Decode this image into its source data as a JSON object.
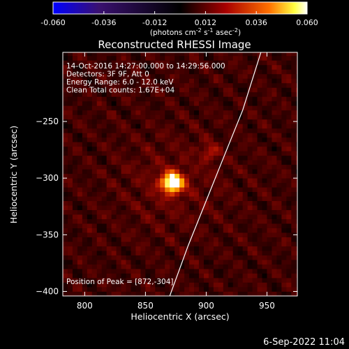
{
  "chart_data": {
    "type": "heatmap",
    "title": "Reconstructed RHESSI Image",
    "xlabel": "Heliocentric X (arcsec)",
    "ylabel": "Heliocentric Y (arcsec)",
    "xlim": [
      782,
      975
    ],
    "ylim": [
      -404,
      -189
    ],
    "xticks": [
      800,
      850,
      900,
      950
    ],
    "yticks": [
      -250,
      -300,
      -350,
      -400
    ],
    "colorbar": {
      "min": -0.06,
      "max": 0.06,
      "ticks": [
        "-0.060",
        "-0.036",
        "-0.012",
        "0.012",
        "0.036",
        "0.060"
      ],
      "unit_prefix": "(photons cm",
      "unit_exp1": "-2",
      "unit_mid": " s",
      "unit_exp2": "-1",
      "unit_mid2": " asec",
      "unit_exp3": "-2",
      "unit_suffix": ")"
    },
    "annotations": [
      "14-Oct-2016 14:27:00.000 to 14:29:56.000",
      "Detectors: 3F 9F, Att 0",
      "Energy Range: 6.0 - 12.0 keV",
      "Clean    Total counts: 1.67E+04"
    ],
    "peak_label": "Position of Peak = [872,-304]",
    "peak": {
      "x": 872,
      "y": -304,
      "value": 0.06
    },
    "secondary_source": {
      "x": 903,
      "y": -277,
      "value": 0.02
    },
    "limb_curve": [
      [
        870,
        -404
      ],
      [
        885,
        -360
      ],
      [
        900,
        -320
      ],
      [
        915,
        -280
      ],
      [
        930,
        -240
      ],
      [
        945,
        -189
      ]
    ],
    "footer_date": "6-Sep-2022 11:04"
  },
  "colors": {
    "background": "#000000",
    "foreground": "#ffffff",
    "colormap": [
      "#0000ff",
      "#3a0a6a",
      "#000000",
      "#a00000",
      "#ff6a00",
      "#ffff40",
      "#ffffff"
    ]
  }
}
